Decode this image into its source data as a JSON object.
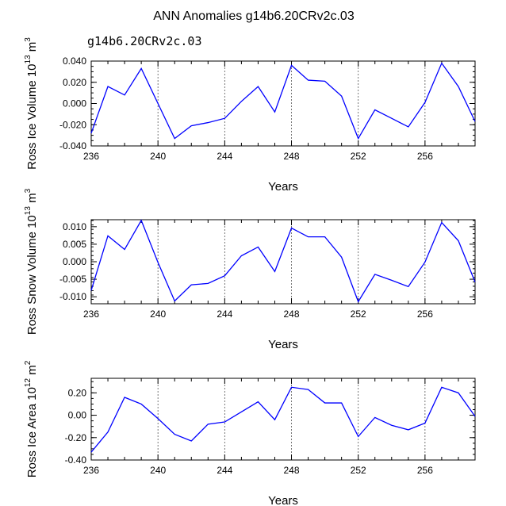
{
  "title": "ANN Anomalies g14b6.20CRv2c.03",
  "case_label": "g14b6.20CRv2c.03",
  "colors": {
    "line": "#0000ff",
    "case_label": "#6b6bd6",
    "axis": "#000000",
    "grid": "#555555"
  },
  "chart_data": [
    {
      "type": "line",
      "name": "ross-ice-volume",
      "ylabel_text": "Ross Ice Volume 10",
      "ylabel_exp": "13",
      "ylabel_unit": " m",
      "ylabel_unit_exp": "3",
      "xlabel": "Years",
      "xlim": [
        236,
        259
      ],
      "ylim": [
        -0.04,
        0.04
      ],
      "xticks": [
        236,
        240,
        244,
        248,
        252,
        256
      ],
      "yticks": [
        -0.04,
        -0.02,
        0.0,
        0.02,
        0.04
      ],
      "ytick_labels": [
        "-0.040",
        "-0.020",
        "0.000",
        "0.020",
        "0.040"
      ],
      "dashed_x": [
        240,
        244,
        248,
        252,
        256
      ],
      "x": [
        236,
        237,
        238,
        239,
        240,
        241,
        242,
        243,
        244,
        245,
        246,
        247,
        248,
        249,
        250,
        251,
        252,
        253,
        254,
        255,
        256,
        257,
        258,
        259
      ],
      "values": [
        -0.028,
        0.016,
        0.008,
        0.033,
        0.0,
        -0.033,
        -0.021,
        -0.018,
        -0.014,
        0.002,
        0.016,
        -0.008,
        0.036,
        0.022,
        0.021,
        0.007,
        -0.033,
        -0.006,
        -0.014,
        -0.022,
        0.001,
        0.038,
        0.016,
        -0.017
      ]
    },
    {
      "type": "line",
      "name": "ross-snow-volume",
      "ylabel_text": "Ross Snow Volume 10",
      "ylabel_exp": "13",
      "ylabel_unit": " m",
      "ylabel_unit_exp": "3",
      "xlabel": "Years",
      "xlim": [
        236,
        259
      ],
      "ylim": [
        -0.012,
        0.012
      ],
      "xticks": [
        236,
        240,
        244,
        248,
        252,
        256
      ],
      "yticks": [
        -0.01,
        -0.005,
        0.0,
        0.005,
        0.01
      ],
      "ytick_labels": [
        "-0.010",
        "-0.005",
        "0.000",
        "0.005",
        "0.010"
      ],
      "dashed_x": [
        240,
        244,
        248,
        252,
        256
      ],
      "x": [
        236,
        237,
        238,
        239,
        240,
        241,
        242,
        243,
        244,
        245,
        246,
        247,
        248,
        249,
        250,
        251,
        252,
        253,
        254,
        255,
        256,
        257,
        258,
        259
      ],
      "values": [
        -0.0082,
        0.0074,
        0.0035,
        0.0118,
        -0.0002,
        -0.0112,
        -0.0066,
        -0.0062,
        -0.004,
        0.0017,
        0.0042,
        -0.0028,
        0.0096,
        0.0071,
        0.0071,
        0.0013,
        -0.0114,
        -0.0036,
        -0.0053,
        -0.0071,
        -0.0001,
        0.0112,
        0.006,
        -0.0058
      ]
    },
    {
      "type": "line",
      "name": "ross-ice-area",
      "ylabel_text": "Ross Ice Area 10",
      "ylabel_exp": "12",
      "ylabel_unit": " m",
      "ylabel_unit_exp": "2",
      "xlabel": "Years",
      "xlim": [
        236,
        259
      ],
      "ylim": [
        -0.4,
        0.33
      ],
      "xticks": [
        236,
        240,
        244,
        248,
        252,
        256
      ],
      "yticks": [
        -0.4,
        -0.2,
        0.0,
        0.2
      ],
      "ytick_labels": [
        "-0.40",
        "-0.20",
        "0.00",
        "0.20"
      ],
      "dashed_x": [
        240,
        244,
        248,
        252,
        256
      ],
      "x": [
        236,
        237,
        238,
        239,
        240,
        241,
        242,
        243,
        244,
        245,
        246,
        247,
        248,
        249,
        250,
        251,
        252,
        253,
        254,
        255,
        256,
        257,
        258,
        259
      ],
      "values": [
        -0.33,
        -0.15,
        0.16,
        0.1,
        -0.03,
        -0.17,
        -0.23,
        -0.08,
        -0.06,
        0.03,
        0.12,
        -0.04,
        0.25,
        0.23,
        0.11,
        0.11,
        -0.19,
        -0.02,
        -0.09,
        -0.13,
        -0.07,
        0.25,
        0.2,
        -0.01
      ]
    }
  ]
}
